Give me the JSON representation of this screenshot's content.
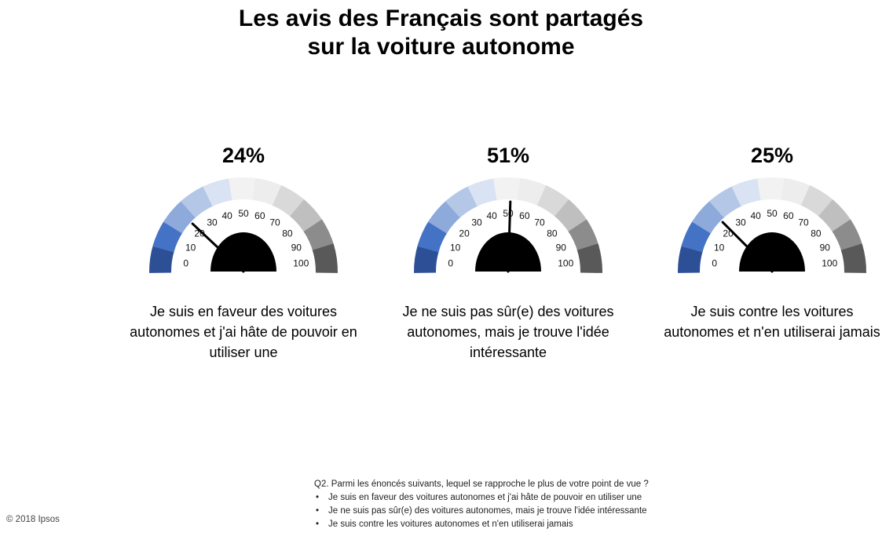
{
  "title": {
    "line1": "Les avis des Français sont partagés",
    "line2": "sur la voiture autonome"
  },
  "chart_data": {
    "type": "gauge",
    "scale": {
      "min": 0,
      "max": 100,
      "ticks": [
        "0",
        "10",
        "20",
        "30",
        "40",
        "50",
        "60",
        "70",
        "80",
        "90",
        "100"
      ]
    },
    "segment_colors": [
      "#2d4f95",
      "#4472c4",
      "#8eaadb",
      "#b4c7e7",
      "#dae3f3",
      "#f2f2f2",
      "#ededed",
      "#d9d9d9",
      "#bfbfbf",
      "#8c8c8c",
      "#595959"
    ],
    "gauges": [
      {
        "percent_label": "24%",
        "value": 24,
        "caption": "Je suis en faveur des voitures autonomes et j'ai hâte de pouvoir en utiliser une"
      },
      {
        "percent_label": "51%",
        "value": 51,
        "caption": "Je ne suis pas sûr(e) des voitures autonomes, mais je trouve l'idée intéressante"
      },
      {
        "percent_label": "25%",
        "value": 25,
        "caption": "Je suis contre les voitures autonomes et n'en utiliserai jamais"
      }
    ]
  },
  "footnote": {
    "question": "Q2. Parmi les énoncés suivants, lequel se rapproche le plus de votre point de vue ?",
    "options": [
      "Je suis en faveur des voitures autonomes et j'ai hâte de pouvoir en utiliser une",
      "Je ne suis pas sûr(e) des voitures autonomes, mais je trouve l'idée intéressante",
      "Je suis contre les voitures autonomes et n'en utiliserai jamais"
    ]
  },
  "copyright": "© 2018 Ipsos"
}
